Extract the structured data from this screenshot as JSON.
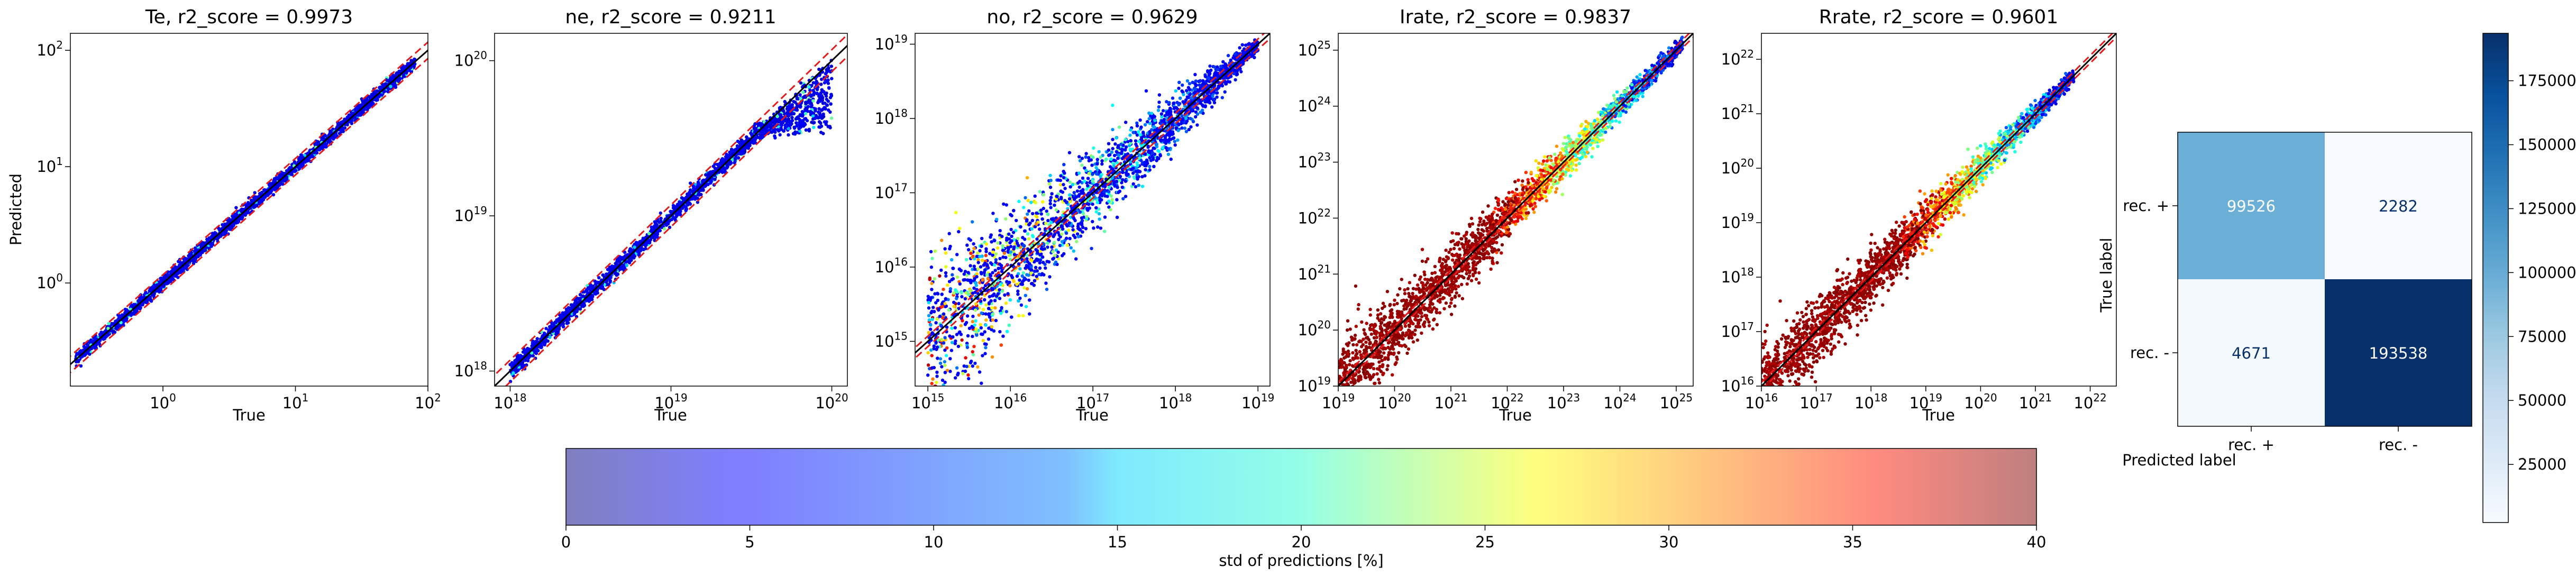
{
  "chart_data": [
    {
      "type": "scatter",
      "title": "Te, r2_score = 0.9973",
      "xlabel": "True",
      "ylabel": "Predicted",
      "xscale": "log",
      "yscale": "log",
      "xlim": [
        0.2,
        100
      ],
      "ylim": [
        0.13,
        140
      ],
      "xticks": [
        {
          "v": 1,
          "b": "10",
          "e": "0"
        },
        {
          "v": 10,
          "b": "10",
          "e": "1"
        },
        {
          "v": 100,
          "b": "10",
          "e": "2"
        }
      ],
      "yticks": [
        {
          "v": 1,
          "b": "10",
          "e": "0"
        },
        {
          "v": 10,
          "b": "10",
          "e": "1"
        },
        {
          "v": 100,
          "b": "10",
          "e": "2"
        }
      ],
      "points_range": [
        0.22,
        80
      ],
      "identity_line": true,
      "bounds_factor": 0.85,
      "spread": "tight",
      "color_scheme": "blue"
    },
    {
      "type": "scatter",
      "title": "ne, r2_score = 0.9211",
      "xlabel": "True",
      "ylabel": "",
      "xscale": "log",
      "yscale": "log",
      "xlim": [
        8e+17,
        1.25e+20
      ],
      "ylim": [
        8e+17,
        1.5e+20
      ],
      "xticks": [
        {
          "v": 1e+18,
          "b": "10",
          "e": "18"
        },
        {
          "v": 1e+19,
          "b": "10",
          "e": "19"
        },
        {
          "v": 1e+20,
          "b": "10",
          "e": "20"
        }
      ],
      "yticks": [
        {
          "v": 1e+18,
          "b": "10",
          "e": "18"
        },
        {
          "v": 1e+19,
          "b": "10",
          "e": "19"
        },
        {
          "v": 1e+20,
          "b": "10",
          "e": "20"
        }
      ],
      "points_range": [
        1e+18,
        1e+20
      ],
      "identity_line": true,
      "bounds_factor": 0.85,
      "spread": "tight",
      "color_scheme": "blue"
    },
    {
      "type": "scatter",
      "title": "no, r2_score = 0.9629",
      "xlabel": "True",
      "ylabel": "",
      "xscale": "log",
      "yscale": "log",
      "xlim": [
        700000000000000.0,
        1.4e+19
      ],
      "ylim": [
        250000000000000.0,
        1.4e+19
      ],
      "xticks": [
        {
          "v": 1000000000000000.0,
          "b": "10",
          "e": "15"
        },
        {
          "v": 1e+16,
          "b": "10",
          "e": "16"
        },
        {
          "v": 1e+17,
          "b": "10",
          "e": "17"
        },
        {
          "v": 1e+18,
          "b": "10",
          "e": "18"
        },
        {
          "v": 1e+19,
          "b": "10",
          "e": "19"
        }
      ],
      "yticks": [
        {
          "v": 1000000000000000.0,
          "b": "10",
          "e": "15"
        },
        {
          "v": 1e+16,
          "b": "10",
          "e": "16"
        },
        {
          "v": 1e+17,
          "b": "10",
          "e": "17"
        },
        {
          "v": 1e+18,
          "b": "10",
          "e": "18"
        },
        {
          "v": 1e+19,
          "b": "10",
          "e": "19"
        }
      ],
      "points_range": [
        1000000000000000.0,
        1e+19
      ],
      "identity_line": true,
      "bounds_factor": 0.85,
      "spread": "wide-low",
      "color_scheme": "mixed"
    },
    {
      "type": "scatter",
      "title": "Irate, r2_score = 0.9837",
      "xlabel": "True",
      "ylabel": "",
      "xscale": "log",
      "yscale": "log",
      "xlim": [
        1e+19,
        2e+25
      ],
      "ylim": [
        1e+19,
        2e+25
      ],
      "xticks": [
        {
          "v": 1e+19,
          "b": "10",
          "e": "19"
        },
        {
          "v": 1e+20,
          "b": "10",
          "e": "20"
        },
        {
          "v": 1e+21,
          "b": "10",
          "e": "21"
        },
        {
          "v": 1e+22,
          "b": "10",
          "e": "22"
        },
        {
          "v": 1e+23,
          "b": "10",
          "e": "23"
        },
        {
          "v": 1e+24,
          "b": "10",
          "e": "24"
        },
        {
          "v": 1e+25,
          "b": "10",
          "e": "25"
        }
      ],
      "yticks": [
        {
          "v": 1e+19,
          "b": "10",
          "e": "19"
        },
        {
          "v": 1e+20,
          "b": "10",
          "e": "20"
        },
        {
          "v": 1e+21,
          "b": "10",
          "e": "21"
        },
        {
          "v": 1e+22,
          "b": "10",
          "e": "22"
        },
        {
          "v": 1e+23,
          "b": "10",
          "e": "23"
        },
        {
          "v": 1e+24,
          "b": "10",
          "e": "24"
        },
        {
          "v": 1e+25,
          "b": "10",
          "e": "25"
        }
      ],
      "points_range": [
        1e+19,
        1.3e+25
      ],
      "identity_line": true,
      "bounds_factor": 0.85,
      "spread": "wide-low",
      "color_scheme": "red"
    },
    {
      "type": "scatter",
      "title": "Rrate, r2_score = 0.9601",
      "xlabel": "True",
      "ylabel": "",
      "xscale": "log",
      "yscale": "log",
      "xlim": [
        1e+16,
        3e+22
      ],
      "ylim": [
        1e+16,
        3e+22
      ],
      "xticks": [
        {
          "v": 1e+16,
          "b": "10",
          "e": "16"
        },
        {
          "v": 1e+17,
          "b": "10",
          "e": "17"
        },
        {
          "v": 1e+18,
          "b": "10",
          "e": "18"
        },
        {
          "v": 1e+19,
          "b": "10",
          "e": "19"
        },
        {
          "v": 1e+20,
          "b": "10",
          "e": "20"
        },
        {
          "v": 1e+21,
          "b": "10",
          "e": "21"
        },
        {
          "v": 1e+22,
          "b": "10",
          "e": "22"
        }
      ],
      "yticks": [
        {
          "v": 1e+16,
          "b": "10",
          "e": "16"
        },
        {
          "v": 1e+17,
          "b": "10",
          "e": "17"
        },
        {
          "v": 1e+18,
          "b": "10",
          "e": "18"
        },
        {
          "v": 1e+19,
          "b": "10",
          "e": "19"
        },
        {
          "v": 1e+20,
          "b": "10",
          "e": "20"
        },
        {
          "v": 1e+21,
          "b": "10",
          "e": "21"
        },
        {
          "v": 1e+22,
          "b": "10",
          "e": "22"
        }
      ],
      "points_range": [
        1e+16,
        5e+21
      ],
      "identity_line": true,
      "bounds_factor": 0.85,
      "spread": "wide-low",
      "color_scheme": "red"
    },
    {
      "type": "heatmap",
      "title": "",
      "xlabel": "Predicted label",
      "ylabel": "True label",
      "row_labels": [
        "rec. +",
        "rec. -"
      ],
      "col_labels": [
        "rec. +",
        "rec. -"
      ],
      "values": [
        [
          99526,
          2282
        ],
        [
          4671,
          193538
        ]
      ],
      "cell_text_colors": [
        [
          "#ffffff",
          "#08306b"
        ],
        [
          "#08306b",
          "#ffffff"
        ]
      ],
      "cell_colors": [
        [
          "#6baed6",
          "#f7fbff"
        ],
        [
          "#f4f9fe",
          "#08306b"
        ]
      ],
      "colorbar": {
        "min": 2282,
        "max": 193538,
        "ticks": [
          25000,
          50000,
          75000,
          100000,
          125000,
          150000,
          175000
        ],
        "tick_labels": [
          "25000",
          "50000",
          "75000",
          "100000",
          "125000",
          "150000",
          "175000"
        ],
        "colormap": "Blues"
      }
    }
  ],
  "colorbar": {
    "label": "std of predictions [%]",
    "min": 0,
    "max": 40,
    "ticks": [
      0,
      5,
      10,
      15,
      20,
      25,
      30,
      35,
      40
    ],
    "tick_labels": [
      "0",
      "5",
      "10",
      "15",
      "20",
      "25",
      "30",
      "35",
      "40"
    ],
    "colormap": "jet",
    "alpha": 0.5
  }
}
